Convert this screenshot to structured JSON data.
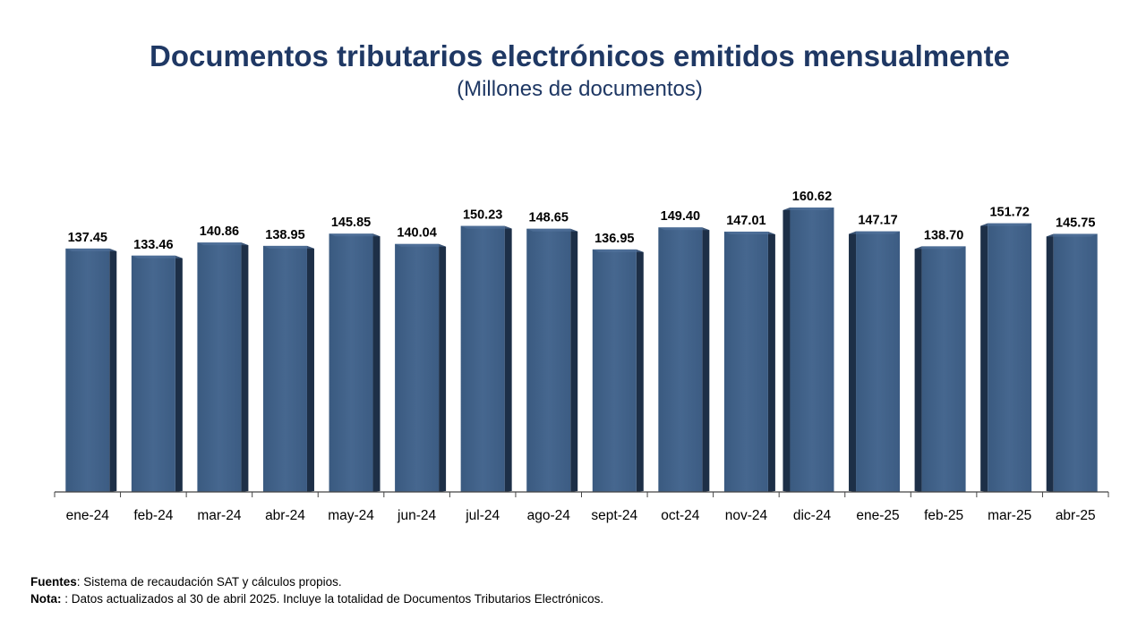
{
  "chart_data": {
    "type": "bar",
    "title": "Documentos tributarios electrónicos emitidos mensualmente",
    "subtitle": "(Millones de documentos)",
    "categories": [
      "ene-24",
      "feb-24",
      "mar-24",
      "abr-24",
      "may-24",
      "jun-24",
      "jul-24",
      "ago-24",
      "sept-24",
      "oct-24",
      "nov-24",
      "dic-24",
      "ene-25",
      "feb-25",
      "mar-25",
      "abr-25"
    ],
    "values": [
      137.45,
      133.46,
      140.86,
      138.95,
      145.85,
      140.04,
      150.23,
      148.65,
      136.95,
      149.4,
      147.01,
      160.62,
      147.17,
      138.7,
      151.72,
      145.75
    ],
    "value_labels": [
      "137.45",
      "133.46",
      "140.86",
      "138.95",
      "145.85",
      "140.04",
      "150.23",
      "148.65",
      "136.95",
      "149.40",
      "147.01",
      "160.62",
      "147.17",
      "138.70",
      "151.72",
      "145.75"
    ],
    "ylim": [
      0,
      160.62
    ],
    "grid": false,
    "legend": "none",
    "bar_color": "#41628a"
  },
  "footer": {
    "sources_label": "Fuentes",
    "sources_text": ": Sistema de recaudación SAT y cálculos propios.",
    "note_label": "Nota:",
    "note_text": " : Datos actualizados al 30 de abril 2025.  Incluye la totalidad de Documentos Tributarios Electrónicos."
  }
}
